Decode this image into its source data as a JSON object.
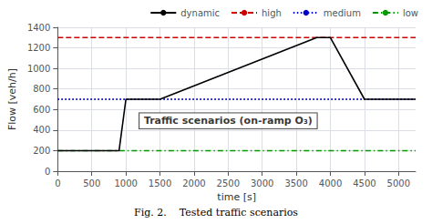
{
  "chart_data": {
    "type": "line",
    "xlabel": "time [s]",
    "ylabel": "Flow [veh/h]",
    "caption": "Fig. 2.    Tested traffic scenarios",
    "annotations": [
      {
        "text": "Traffic scenarios (on-ramp O₃)",
        "x": 2500,
        "y": 490
      }
    ],
    "xlim": [
      0,
      5250
    ],
    "ylim": [
      0,
      1400
    ],
    "xticks": [
      0,
      500,
      1000,
      1500,
      2000,
      2500,
      3000,
      3500,
      4000,
      4500,
      5000
    ],
    "yticks": [
      0,
      200,
      400,
      600,
      800,
      1000,
      1200,
      1400
    ],
    "grid": true,
    "legend": "upper right",
    "series": [
      {
        "name": "dynamic",
        "type": "line",
        "color": "#000000",
        "line_style": "solid",
        "x": [
          0,
          900,
          1000,
          1500,
          3800,
          4000,
          4500,
          5250
        ],
        "values": [
          200,
          200,
          700,
          700,
          1300,
          1300,
          700,
          700
        ]
      },
      {
        "name": "high",
        "type": "hline",
        "color": "#cc0000",
        "line_style": "dashed",
        "values": [
          1300
        ]
      },
      {
        "name": "medium",
        "type": "hline",
        "color": "#0000cc",
        "line_style": "dotted",
        "values": [
          700
        ]
      },
      {
        "name": "low",
        "type": "hline",
        "color": "#009900",
        "line_style": "dashdot",
        "values": [
          200
        ]
      }
    ]
  }
}
